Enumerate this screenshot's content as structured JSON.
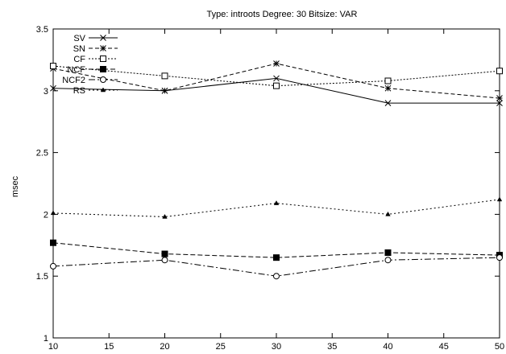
{
  "chart_data": {
    "type": "line",
    "title": "Type: introots Degree: 30 Bitsize: VAR",
    "xlabel": "",
    "ylabel": "msec",
    "xlim": [
      10,
      50
    ],
    "ylim": [
      1,
      3.5
    ],
    "xticks": [
      10,
      15,
      20,
      25,
      30,
      35,
      40,
      45,
      50
    ],
    "yticks": [
      1,
      1.5,
      2,
      2.5,
      3,
      3.5
    ],
    "ytick_labels": [
      "1",
      "1.5",
      "2",
      "2.5",
      "3",
      "3.5"
    ],
    "x": [
      10,
      20,
      30,
      40,
      50
    ],
    "legend_position": "top-left",
    "grid": false,
    "series": [
      {
        "name": "SV",
        "values": [
          3.02,
          3.0,
          3.1,
          2.9,
          2.9
        ],
        "marker": "x",
        "dash": ""
      },
      {
        "name": "SN",
        "values": [
          3.18,
          3.0,
          3.22,
          3.02,
          2.94
        ],
        "marker": "star",
        "dash": "5,3"
      },
      {
        "name": "CF",
        "values": [
          3.2,
          3.12,
          3.04,
          3.08,
          3.16
        ],
        "marker": "square-open",
        "dash": "2,2"
      },
      {
        "name": "NCF",
        "values": [
          1.77,
          1.68,
          1.65,
          1.69,
          1.67
        ],
        "marker": "square-filled",
        "dash": "6,3"
      },
      {
        "name": "NCF2",
        "values": [
          1.58,
          1.63,
          1.5,
          1.63,
          1.65
        ],
        "marker": "circle-open",
        "dash": "8,3,2,3"
      },
      {
        "name": "RS",
        "values": [
          2.01,
          1.98,
          2.09,
          2.0,
          2.12
        ],
        "marker": "triangle",
        "dash": "2,3"
      }
    ]
  }
}
